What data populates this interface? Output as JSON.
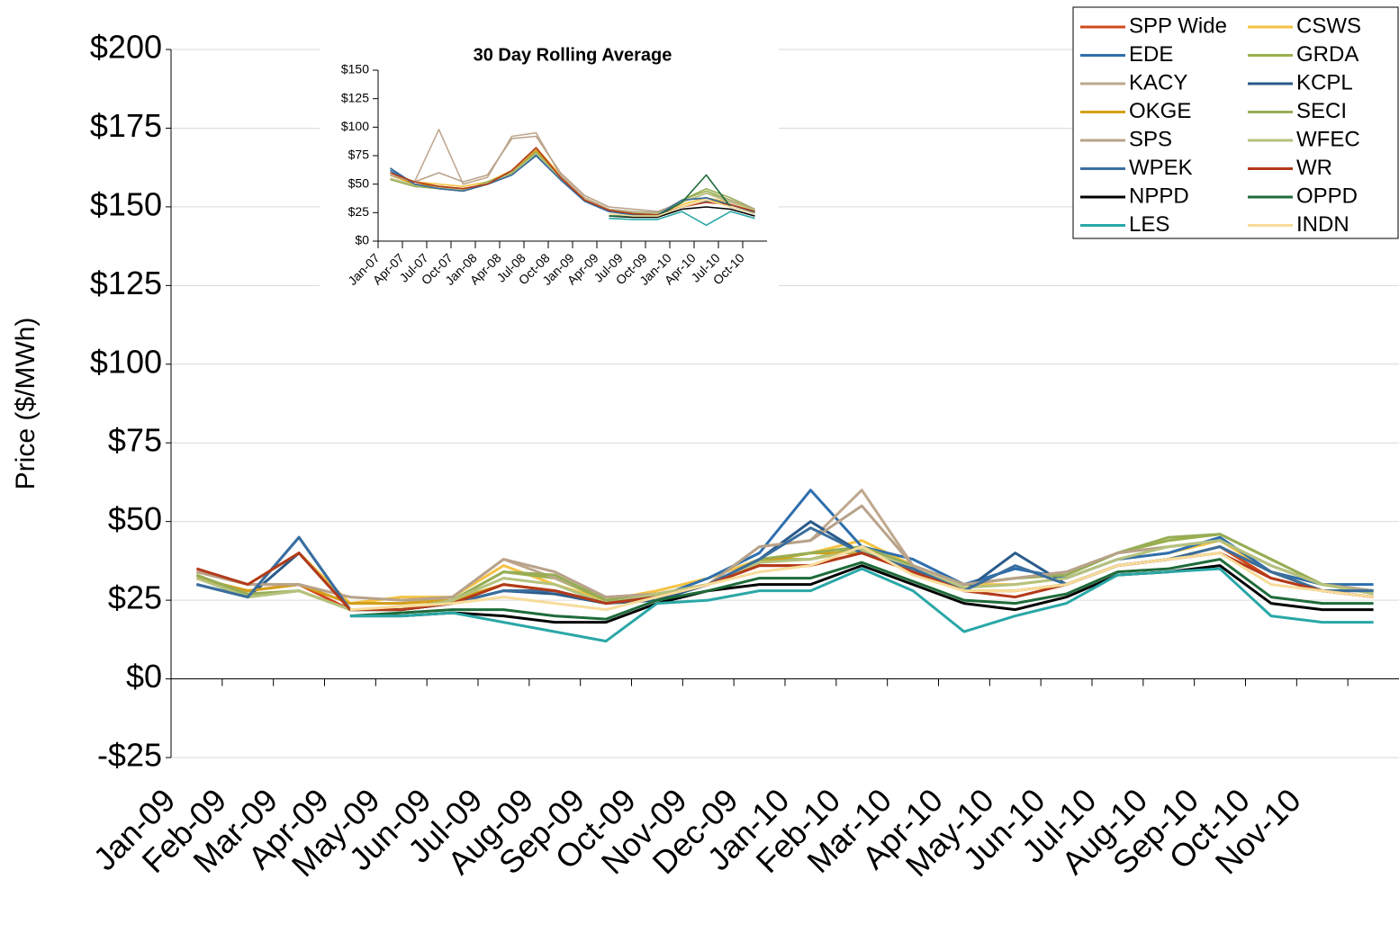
{
  "chart_data": [
    {
      "type": "line",
      "y_label": "Price ($/MWh)",
      "categories": [
        "Jan-09",
        "Feb-09",
        "Mar-09",
        "Apr-09",
        "May-09",
        "Jun-09",
        "Jul-09",
        "Aug-09",
        "Sep-09",
        "Oct-09",
        "Nov-09",
        "Dec-09",
        "Jan-10",
        "Feb-10",
        "Mar-10",
        "Apr-10",
        "May-10",
        "Jun-10",
        "Jul-10",
        "Aug-10",
        "Sep-10",
        "Oct-10",
        "Nov-10",
        null
      ],
      "ylim": [
        -25,
        200
      ],
      "yticks": [
        {
          "value": -25,
          "label": "-$25"
        },
        {
          "value": 0,
          "label": "$0"
        },
        {
          "value": 25,
          "label": "$25"
        },
        {
          "value": 50,
          "label": "$50"
        },
        {
          "value": 75,
          "label": "$75"
        },
        {
          "value": 100,
          "label": "$100"
        },
        {
          "value": 125,
          "label": "$125"
        },
        {
          "value": 150,
          "label": "$150"
        },
        {
          "value": 175,
          "label": "$175"
        },
        {
          "value": 200,
          "label": "$200"
        }
      ],
      "grid": true,
      "legend": "top-right",
      "series": [
        {
          "name": "SPP Wide",
          "color": "#d0481c",
          "values": [
            32,
            28,
            30,
            22,
            22,
            24,
            30,
            28,
            24,
            26,
            30,
            36,
            36,
            40,
            35,
            28,
            28,
            30,
            36,
            38,
            42,
            32,
            28,
            26
          ]
        },
        {
          "name": "CSWS",
          "color": "#f5c242",
          "values": [
            34,
            30,
            40,
            24,
            26,
            26,
            36,
            30,
            25,
            28,
            32,
            38,
            40,
            44,
            36,
            30,
            30,
            32,
            38,
            40,
            44,
            34,
            30,
            28
          ]
        },
        {
          "name": "EDE",
          "color": "#2e6fae",
          "values": [
            30,
            26,
            45,
            22,
            22,
            24,
            28,
            28,
            24,
            26,
            32,
            40,
            60,
            42,
            38,
            30,
            35,
            32,
            38,
            40,
            45,
            34,
            30,
            30
          ]
        },
        {
          "name": "GRDA",
          "color": "#9bb04d",
          "values": [
            33,
            26,
            28,
            22,
            22,
            25,
            34,
            32,
            25,
            27,
            30,
            38,
            38,
            42,
            36,
            30,
            32,
            33,
            40,
            44,
            46,
            38,
            30,
            28
          ]
        },
        {
          "name": "KACY",
          "color": "#bfa88e",
          "values": [
            34,
            30,
            30,
            24,
            24,
            26,
            38,
            32,
            26,
            27,
            30,
            42,
            44,
            60,
            36,
            30,
            32,
            34,
            40,
            42,
            44,
            36,
            30,
            28
          ]
        },
        {
          "name": "KCPL",
          "color": "#2a5b8a",
          "values": [
            30,
            26,
            40,
            22,
            22,
            24,
            28,
            27,
            24,
            25,
            30,
            38,
            50,
            40,
            35,
            28,
            40,
            30,
            36,
            38,
            42,
            34,
            28,
            28
          ]
        },
        {
          "name": "OKGE",
          "color": "#d4a017",
          "values": [
            32,
            28,
            30,
            24,
            24,
            25,
            30,
            28,
            24,
            26,
            30,
            37,
            40,
            40,
            34,
            28,
            28,
            30,
            36,
            38,
            42,
            34,
            28,
            26
          ]
        },
        {
          "name": "SECI",
          "color": "#97ad55",
          "values": [
            33,
            27,
            28,
            22,
            22,
            25,
            34,
            33,
            25,
            27,
            30,
            38,
            40,
            42,
            36,
            30,
            32,
            33,
            40,
            45,
            46,
            38,
            30,
            28
          ]
        },
        {
          "name": "SPS",
          "color": "#b8a28a",
          "values": [
            34,
            30,
            30,
            26,
            25,
            26,
            38,
            34,
            26,
            27,
            30,
            42,
            44,
            55,
            36,
            30,
            32,
            34,
            40,
            42,
            44,
            36,
            30,
            28
          ]
        },
        {
          "name": "WFEC",
          "color": "#b5c27d",
          "values": [
            32,
            26,
            28,
            22,
            22,
            25,
            32,
            30,
            24,
            27,
            30,
            37,
            38,
            41,
            35,
            29,
            30,
            32,
            38,
            42,
            44,
            36,
            30,
            27
          ]
        },
        {
          "name": "WPEK",
          "color": "#3a6e9e",
          "values": [
            30,
            26,
            45,
            22,
            22,
            24,
            28,
            28,
            24,
            26,
            30,
            38,
            48,
            40,
            35,
            28,
            36,
            30,
            36,
            38,
            42,
            34,
            28,
            28
          ]
        },
        {
          "name": "WR",
          "color": "#b33a1a",
          "values": [
            35,
            30,
            40,
            22,
            22,
            24,
            30,
            28,
            24,
            26,
            30,
            36,
            36,
            40,
            34,
            28,
            26,
            30,
            36,
            38,
            40,
            32,
            28,
            26
          ]
        },
        {
          "name": "NPPD",
          "color": "#000000",
          "values": [
            null,
            null,
            null,
            20,
            20,
            21,
            20,
            18,
            18,
            24,
            28,
            30,
            30,
            36,
            30,
            24,
            22,
            26,
            33,
            34,
            36,
            24,
            22,
            22
          ]
        },
        {
          "name": "OPPD",
          "color": "#1e6b3a",
          "values": [
            null,
            null,
            null,
            20,
            21,
            22,
            22,
            20,
            19,
            25,
            28,
            32,
            32,
            37,
            31,
            25,
            24,
            27,
            34,
            35,
            38,
            26,
            24,
            24
          ]
        },
        {
          "name": "LES",
          "color": "#2aa7a7",
          "values": [
            null,
            null,
            null,
            20,
            20,
            21,
            18,
            15,
            12,
            24,
            25,
            28,
            28,
            35,
            28,
            15,
            20,
            24,
            33,
            34,
            35,
            20,
            18,
            18
          ]
        },
        {
          "name": "INDN",
          "color": "#f7dc9a",
          "values": [
            null,
            null,
            null,
            22,
            23,
            24,
            26,
            24,
            22,
            26,
            30,
            34,
            36,
            42,
            33,
            28,
            28,
            30,
            36,
            38,
            40,
            30,
            28,
            26
          ]
        }
      ]
    },
    {
      "type": "line",
      "title": "30 Day Rolling Average",
      "categories": [
        "Jan-07",
        "Apr-07",
        "Jul-07",
        "Oct-07",
        "Jan-08",
        "Apr-08",
        "Jul-08",
        "Oct-08",
        "Jan-09",
        "Apr-09",
        "Jul-09",
        "Oct-09",
        "Jan-10",
        "Apr-10",
        "Jul-10",
        "Oct-10"
      ],
      "ylim": [
        0,
        150
      ],
      "yticks": [
        {
          "value": 0,
          "label": "$0"
        },
        {
          "value": 25,
          "label": "$25"
        },
        {
          "value": 50,
          "label": "$50"
        },
        {
          "value": 75,
          "label": "$75"
        },
        {
          "value": 100,
          "label": "$100"
        },
        {
          "value": 125,
          "label": "$125"
        },
        {
          "value": 150,
          "label": "$150"
        }
      ],
      "series": [
        {
          "color": "#d0481c",
          "values": [
            58,
            50,
            48,
            46,
            50,
            60,
            80,
            56,
            36,
            27,
            24,
            23,
            30,
            36,
            32,
            26
          ]
        },
        {
          "color": "#f5c242",
          "values": [
            60,
            52,
            50,
            48,
            52,
            62,
            82,
            58,
            38,
            28,
            25,
            24,
            32,
            38,
            34,
            27
          ]
        },
        {
          "color": "#2e6fae",
          "values": [
            62,
            50,
            47,
            45,
            50,
            58,
            76,
            55,
            35,
            26,
            23,
            22,
            30,
            35,
            32,
            25
          ]
        },
        {
          "color": "#9bb04d",
          "values": [
            55,
            48,
            47,
            44,
            52,
            60,
            78,
            56,
            36,
            27,
            25,
            24,
            36,
            44,
            36,
            27
          ]
        },
        {
          "color": "#bfa88e",
          "values": [
            58,
            52,
            98,
            50,
            56,
            92,
            95,
            58,
            38,
            28,
            26,
            25,
            34,
            42,
            34,
            28
          ]
        },
        {
          "color": "#2a5b8a",
          "values": [
            64,
            50,
            46,
            44,
            50,
            58,
            75,
            54,
            35,
            26,
            24,
            23,
            36,
            38,
            32,
            26
          ]
        },
        {
          "color": "#d4a017",
          "values": [
            58,
            50,
            48,
            46,
            50,
            60,
            80,
            56,
            36,
            27,
            24,
            23,
            30,
            36,
            32,
            26
          ]
        },
        {
          "color": "#97ad55",
          "values": [
            54,
            48,
            46,
            44,
            52,
            60,
            78,
            55,
            36,
            27,
            25,
            24,
            36,
            46,
            38,
            28
          ]
        },
        {
          "color": "#b8a28a",
          "values": [
            58,
            52,
            60,
            52,
            58,
            90,
            92,
            60,
            40,
            30,
            28,
            26,
            34,
            42,
            36,
            28
          ]
        },
        {
          "color": "#b5c27d",
          "values": [
            55,
            49,
            47,
            45,
            51,
            59,
            77,
            55,
            36,
            27,
            25,
            24,
            34,
            42,
            35,
            27
          ]
        },
        {
          "color": "#3a6e9e",
          "values": [
            64,
            50,
            46,
            44,
            50,
            58,
            75,
            54,
            35,
            26,
            24,
            23,
            36,
            38,
            32,
            26
          ]
        },
        {
          "color": "#b33a1a",
          "values": [
            60,
            52,
            48,
            46,
            50,
            62,
            82,
            56,
            36,
            27,
            24,
            23,
            30,
            34,
            32,
            26
          ]
        },
        {
          "color": "#000000",
          "values": [
            null,
            null,
            null,
            null,
            null,
            null,
            null,
            null,
            null,
            22,
            21,
            21,
            28,
            30,
            28,
            22
          ]
        },
        {
          "color": "#1e6b3a",
          "values": [
            null,
            null,
            null,
            null,
            null,
            null,
            null,
            null,
            null,
            22,
            22,
            22,
            34,
            58,
            30,
            24
          ]
        },
        {
          "color": "#2aa7a7",
          "values": [
            null,
            null,
            null,
            null,
            null,
            null,
            null,
            null,
            null,
            20,
            19,
            19,
            26,
            14,
            26,
            20
          ]
        },
        {
          "color": "#f7dc9a",
          "values": [
            null,
            null,
            null,
            null,
            null,
            null,
            null,
            null,
            null,
            24,
            22,
            22,
            30,
            36,
            30,
            24
          ]
        }
      ]
    }
  ]
}
